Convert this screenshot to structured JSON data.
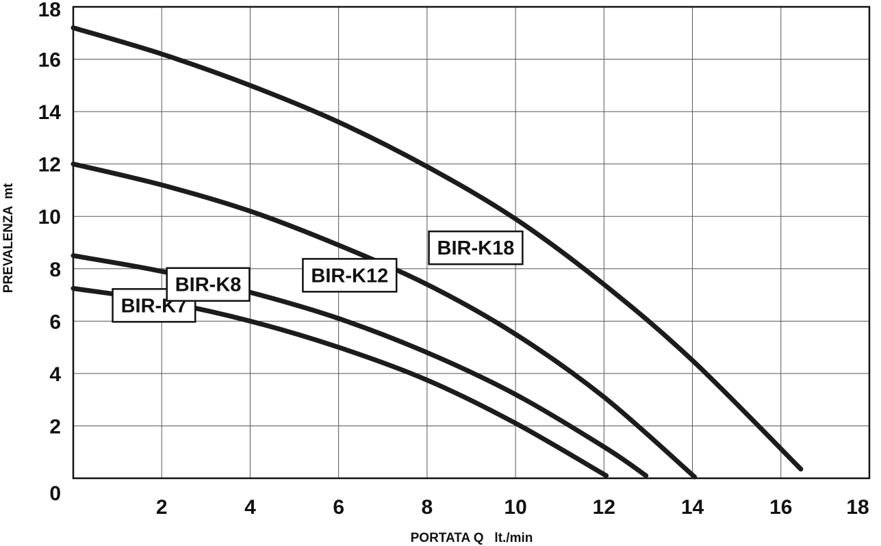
{
  "chart_data": {
    "type": "line",
    "title": "",
    "xlabel": "PORTATA Q   lt./min",
    "ylabel": "PREVALENZA  mt",
    "xlim": [
      0,
      18
    ],
    "ylim": [
      0,
      18
    ],
    "x_ticks": [
      "2",
      "4",
      "6",
      "8",
      "10",
      "12",
      "14",
      "16",
      "18"
    ],
    "y_ticks": [
      "0",
      "2",
      "4",
      "6",
      "8",
      "10",
      "12",
      "14",
      "16",
      "18"
    ],
    "grid": true,
    "legend": "inline labels",
    "series": [
      {
        "name": "BIR-K7",
        "x": [
          0,
          2,
          4,
          6,
          8,
          10,
          12.05
        ],
        "y": [
          7.25,
          6.75,
          6.0,
          5.0,
          3.75,
          2.1,
          0.1
        ]
      },
      {
        "name": "BIR-K8",
        "x": [
          0,
          2,
          4,
          6,
          8,
          10,
          12,
          12.95
        ],
        "y": [
          8.5,
          7.9,
          7.1,
          6.1,
          4.8,
          3.2,
          1.2,
          0.1
        ]
      },
      {
        "name": "BIR-K12",
        "x": [
          0,
          2,
          4,
          6,
          8,
          10,
          12,
          14.05
        ],
        "y": [
          12.0,
          11.2,
          10.2,
          8.9,
          7.4,
          5.5,
          3.1,
          0.05
        ]
      },
      {
        "name": "BIR-K18",
        "x": [
          0,
          2,
          4,
          6,
          8,
          10,
          12,
          14,
          16.45
        ],
        "y": [
          17.2,
          16.2,
          15.0,
          13.6,
          11.9,
          9.9,
          7.4,
          4.5,
          0.35
        ]
      }
    ]
  }
}
